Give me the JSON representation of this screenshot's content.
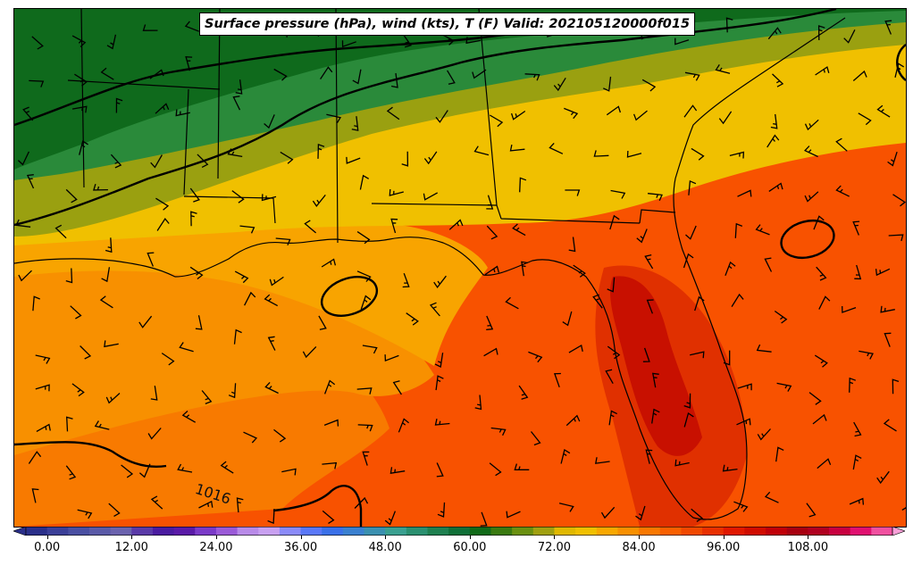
{
  "title": "Surface pressure (hPa), wind (kts), T (F) Valid: 202105120000f015",
  "contour_labels": [
    "1016"
  ],
  "colorbar": {
    "min": -3,
    "max": 120,
    "step": 3,
    "ticks": [
      "0.00",
      "12.00",
      "24.00",
      "36.00",
      "48.00",
      "60.00",
      "72.00",
      "84.00",
      "96.00",
      "108.00"
    ],
    "tick_values": [
      0,
      12,
      24,
      36,
      48,
      60,
      72,
      84,
      96,
      108
    ],
    "colors": [
      "#2a2f8a",
      "#3b3f98",
      "#4a4fa2",
      "#5a5aa8",
      "#6a62ae",
      "#5a3aa8",
      "#4a1ba0",
      "#5a1aa8",
      "#7a3ac8",
      "#9a5ad8",
      "#b88ae8",
      "#c8a0f0",
      "#8a8af8",
      "#5a78f8",
      "#3a70e8",
      "#3a80d0",
      "#3a90b0",
      "#3aa090",
      "#2a9070",
      "#1e8050",
      "#0f7038",
      "#106a18",
      "#3a7a10",
      "#6a9010",
      "#a0a010",
      "#e0b800",
      "#f0c000",
      "#f8a800",
      "#f89000",
      "#f87800",
      "#f86000",
      "#f04800",
      "#e83000",
      "#e01800",
      "#d00c00",
      "#c00008",
      "#a80010",
      "#b00020",
      "#c80040",
      "#e01070",
      "#f050a0"
    ]
  },
  "legend_colors": {
    "cold_green": "#0f6a1c",
    "green": "#1e8a3a",
    "olive": "#8a9a10",
    "yellow": "#f0c000",
    "orange": "#f8a000",
    "dark_orange": "#f88000",
    "red_orange": "#f85000",
    "red": "#e02800",
    "dark_red": "#c81000"
  }
}
